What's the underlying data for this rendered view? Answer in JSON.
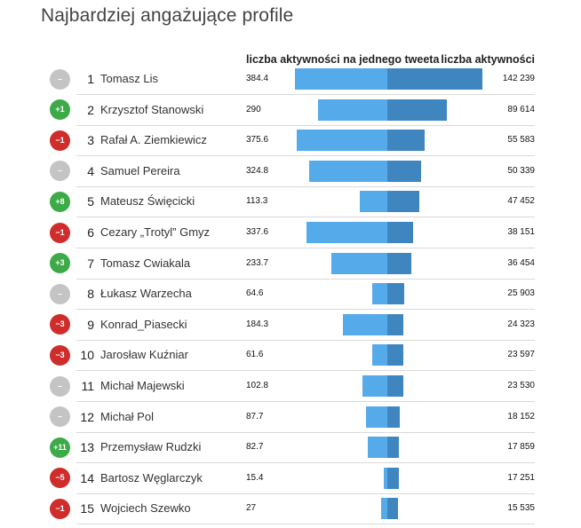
{
  "title": "Najbardziej angażujące profile",
  "headers": {
    "per_tweet": "liczba aktywności na jednego tweeta",
    "total": "liczba aktywności"
  },
  "colors": {
    "bar_left": "#55aaea",
    "bar_right": "#3f86c0",
    "badge_up": "#3daa48",
    "badge_down": "#cf2c2c",
    "badge_same": "#c4c4c4"
  },
  "chart_data": {
    "type": "bar",
    "title": "Najbardziej angażujące profile",
    "series": [
      {
        "name": "liczba aktywności na jednego tweeta",
        "values": [
          384.4,
          290,
          375.6,
          324.8,
          113.3,
          337.6,
          233.7,
          64.6,
          184.3,
          61.6,
          102.8,
          87.7,
          82.7,
          15.4,
          27
        ]
      },
      {
        "name": "liczba aktywności",
        "values": [
          142239,
          89614,
          55583,
          50339,
          47452,
          38151,
          36454,
          25903,
          24323,
          23597,
          23530,
          18152,
          17859,
          17251,
          15535
        ]
      }
    ],
    "rows": [
      {
        "rank": "1",
        "name": "Tomasz Lis",
        "change": "–",
        "trend": "same",
        "per_tweet": 384.4,
        "per_tweet_label": "384.4",
        "total": 142239,
        "total_label": "142 239"
      },
      {
        "rank": "2",
        "name": "Krzysztof Stanowski",
        "change": "+1",
        "trend": "up",
        "per_tweet": 290,
        "per_tweet_label": "290",
        "total": 89614,
        "total_label": "89 614"
      },
      {
        "rank": "3",
        "name": "Rafał A. Ziemkiewicz",
        "change": "−1",
        "trend": "down",
        "per_tweet": 375.6,
        "per_tweet_label": "375.6",
        "total": 55583,
        "total_label": "55 583"
      },
      {
        "rank": "4",
        "name": "Samuel Pereira",
        "change": "–",
        "trend": "same",
        "per_tweet": 324.8,
        "per_tweet_label": "324.8",
        "total": 50339,
        "total_label": "50 339"
      },
      {
        "rank": "5",
        "name": "Mateusz Święcicki",
        "change": "+8",
        "trend": "up",
        "per_tweet": 113.3,
        "per_tweet_label": "113.3",
        "total": 47452,
        "total_label": "47 452"
      },
      {
        "rank": "6",
        "name": "Cezary „Trotyl” Gmyz",
        "change": "−1",
        "trend": "down",
        "per_tweet": 337.6,
        "per_tweet_label": "337.6",
        "total": 38151,
        "total_label": "38 151"
      },
      {
        "rank": "7",
        "name": "Tomasz Cwiakala",
        "change": "+3",
        "trend": "up",
        "per_tweet": 233.7,
        "per_tweet_label": "233.7",
        "total": 36454,
        "total_label": "36 454"
      },
      {
        "rank": "8",
        "name": "Łukasz Warzecha",
        "change": "–",
        "trend": "same",
        "per_tweet": 64.6,
        "per_tweet_label": "64.6",
        "total": 25903,
        "total_label": "25 903"
      },
      {
        "rank": "9",
        "name": "Konrad_Piasecki",
        "change": "−3",
        "trend": "down",
        "per_tweet": 184.3,
        "per_tweet_label": "184.3",
        "total": 24323,
        "total_label": "24 323"
      },
      {
        "rank": "10",
        "name": "Jarosław Kuźniar",
        "change": "−3",
        "trend": "down",
        "per_tweet": 61.6,
        "per_tweet_label": "61.6",
        "total": 23597,
        "total_label": "23 597"
      },
      {
        "rank": "11",
        "name": "Michał Majewski",
        "change": "–",
        "trend": "same",
        "per_tweet": 102.8,
        "per_tweet_label": "102.8",
        "total": 23530,
        "total_label": "23 530"
      },
      {
        "rank": "12",
        "name": "Michał Pol",
        "change": "–",
        "trend": "same",
        "per_tweet": 87.7,
        "per_tweet_label": "87.7",
        "total": 18152,
        "total_label": "18 152"
      },
      {
        "rank": "13",
        "name": "Przemysław Rudzki",
        "change": "+11",
        "trend": "up",
        "per_tweet": 82.7,
        "per_tweet_label": "82.7",
        "total": 17859,
        "total_label": "17 859"
      },
      {
        "rank": "14",
        "name": "Bartosz Węglarczyk",
        "change": "−5",
        "trend": "down",
        "per_tweet": 15.4,
        "per_tweet_label": "15.4",
        "total": 17251,
        "total_label": "17 251"
      },
      {
        "rank": "15",
        "name": "Wojciech Szewko",
        "change": "−1",
        "trend": "down",
        "per_tweet": 27,
        "per_tweet_label": "27",
        "total": 15535,
        "total_label": "15 535"
      }
    ]
  }
}
